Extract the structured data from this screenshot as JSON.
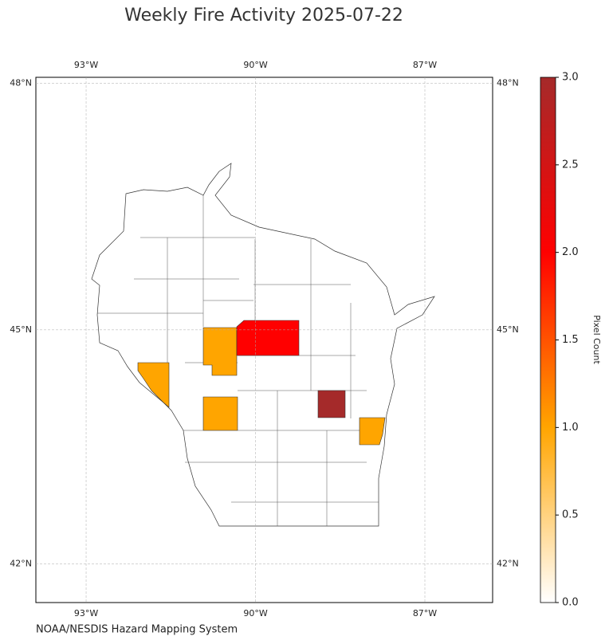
{
  "title": "Weekly Fire Activity 2025-07-22",
  "map": {
    "lonlim": [
      -93.89,
      -85.8
    ],
    "latlim": [
      41.49,
      48.07
    ],
    "lon_ticks": [
      {
        "value": -93,
        "label": "93°W"
      },
      {
        "value": -90,
        "label": "90°W"
      },
      {
        "value": -87,
        "label": "87°W"
      }
    ],
    "lat_ticks": [
      {
        "value": 42,
        "label": "42°N"
      },
      {
        "value": 45,
        "label": "45°N"
      },
      {
        "value": 48,
        "label": "48°N"
      }
    ],
    "grid": true
  },
  "regions": {
    "values": [
      1,
      1,
      2,
      3,
      1,
      1
    ]
  },
  "colorbar": {
    "label": "Pixel Count",
    "lim": [
      0,
      3
    ],
    "ticks": [
      {
        "value": 0,
        "label": "0.0"
      },
      {
        "value": 0.5,
        "label": "0.5"
      },
      {
        "value": 1,
        "label": "1.0"
      },
      {
        "value": 1.5,
        "label": "1.5"
      },
      {
        "value": 2,
        "label": "2.0"
      },
      {
        "value": 2.5,
        "label": "2.5"
      },
      {
        "value": 3,
        "label": "3.0"
      }
    ],
    "colormap": [
      {
        "value": 0,
        "color": "#ffffff"
      },
      {
        "value": 1,
        "color": "#ffa500"
      },
      {
        "value": 2,
        "color": "#ff0000"
      },
      {
        "value": 3,
        "color": "#a52a2a"
      }
    ]
  },
  "source": "NOAA/NESDIS Hazard Mapping System"
}
